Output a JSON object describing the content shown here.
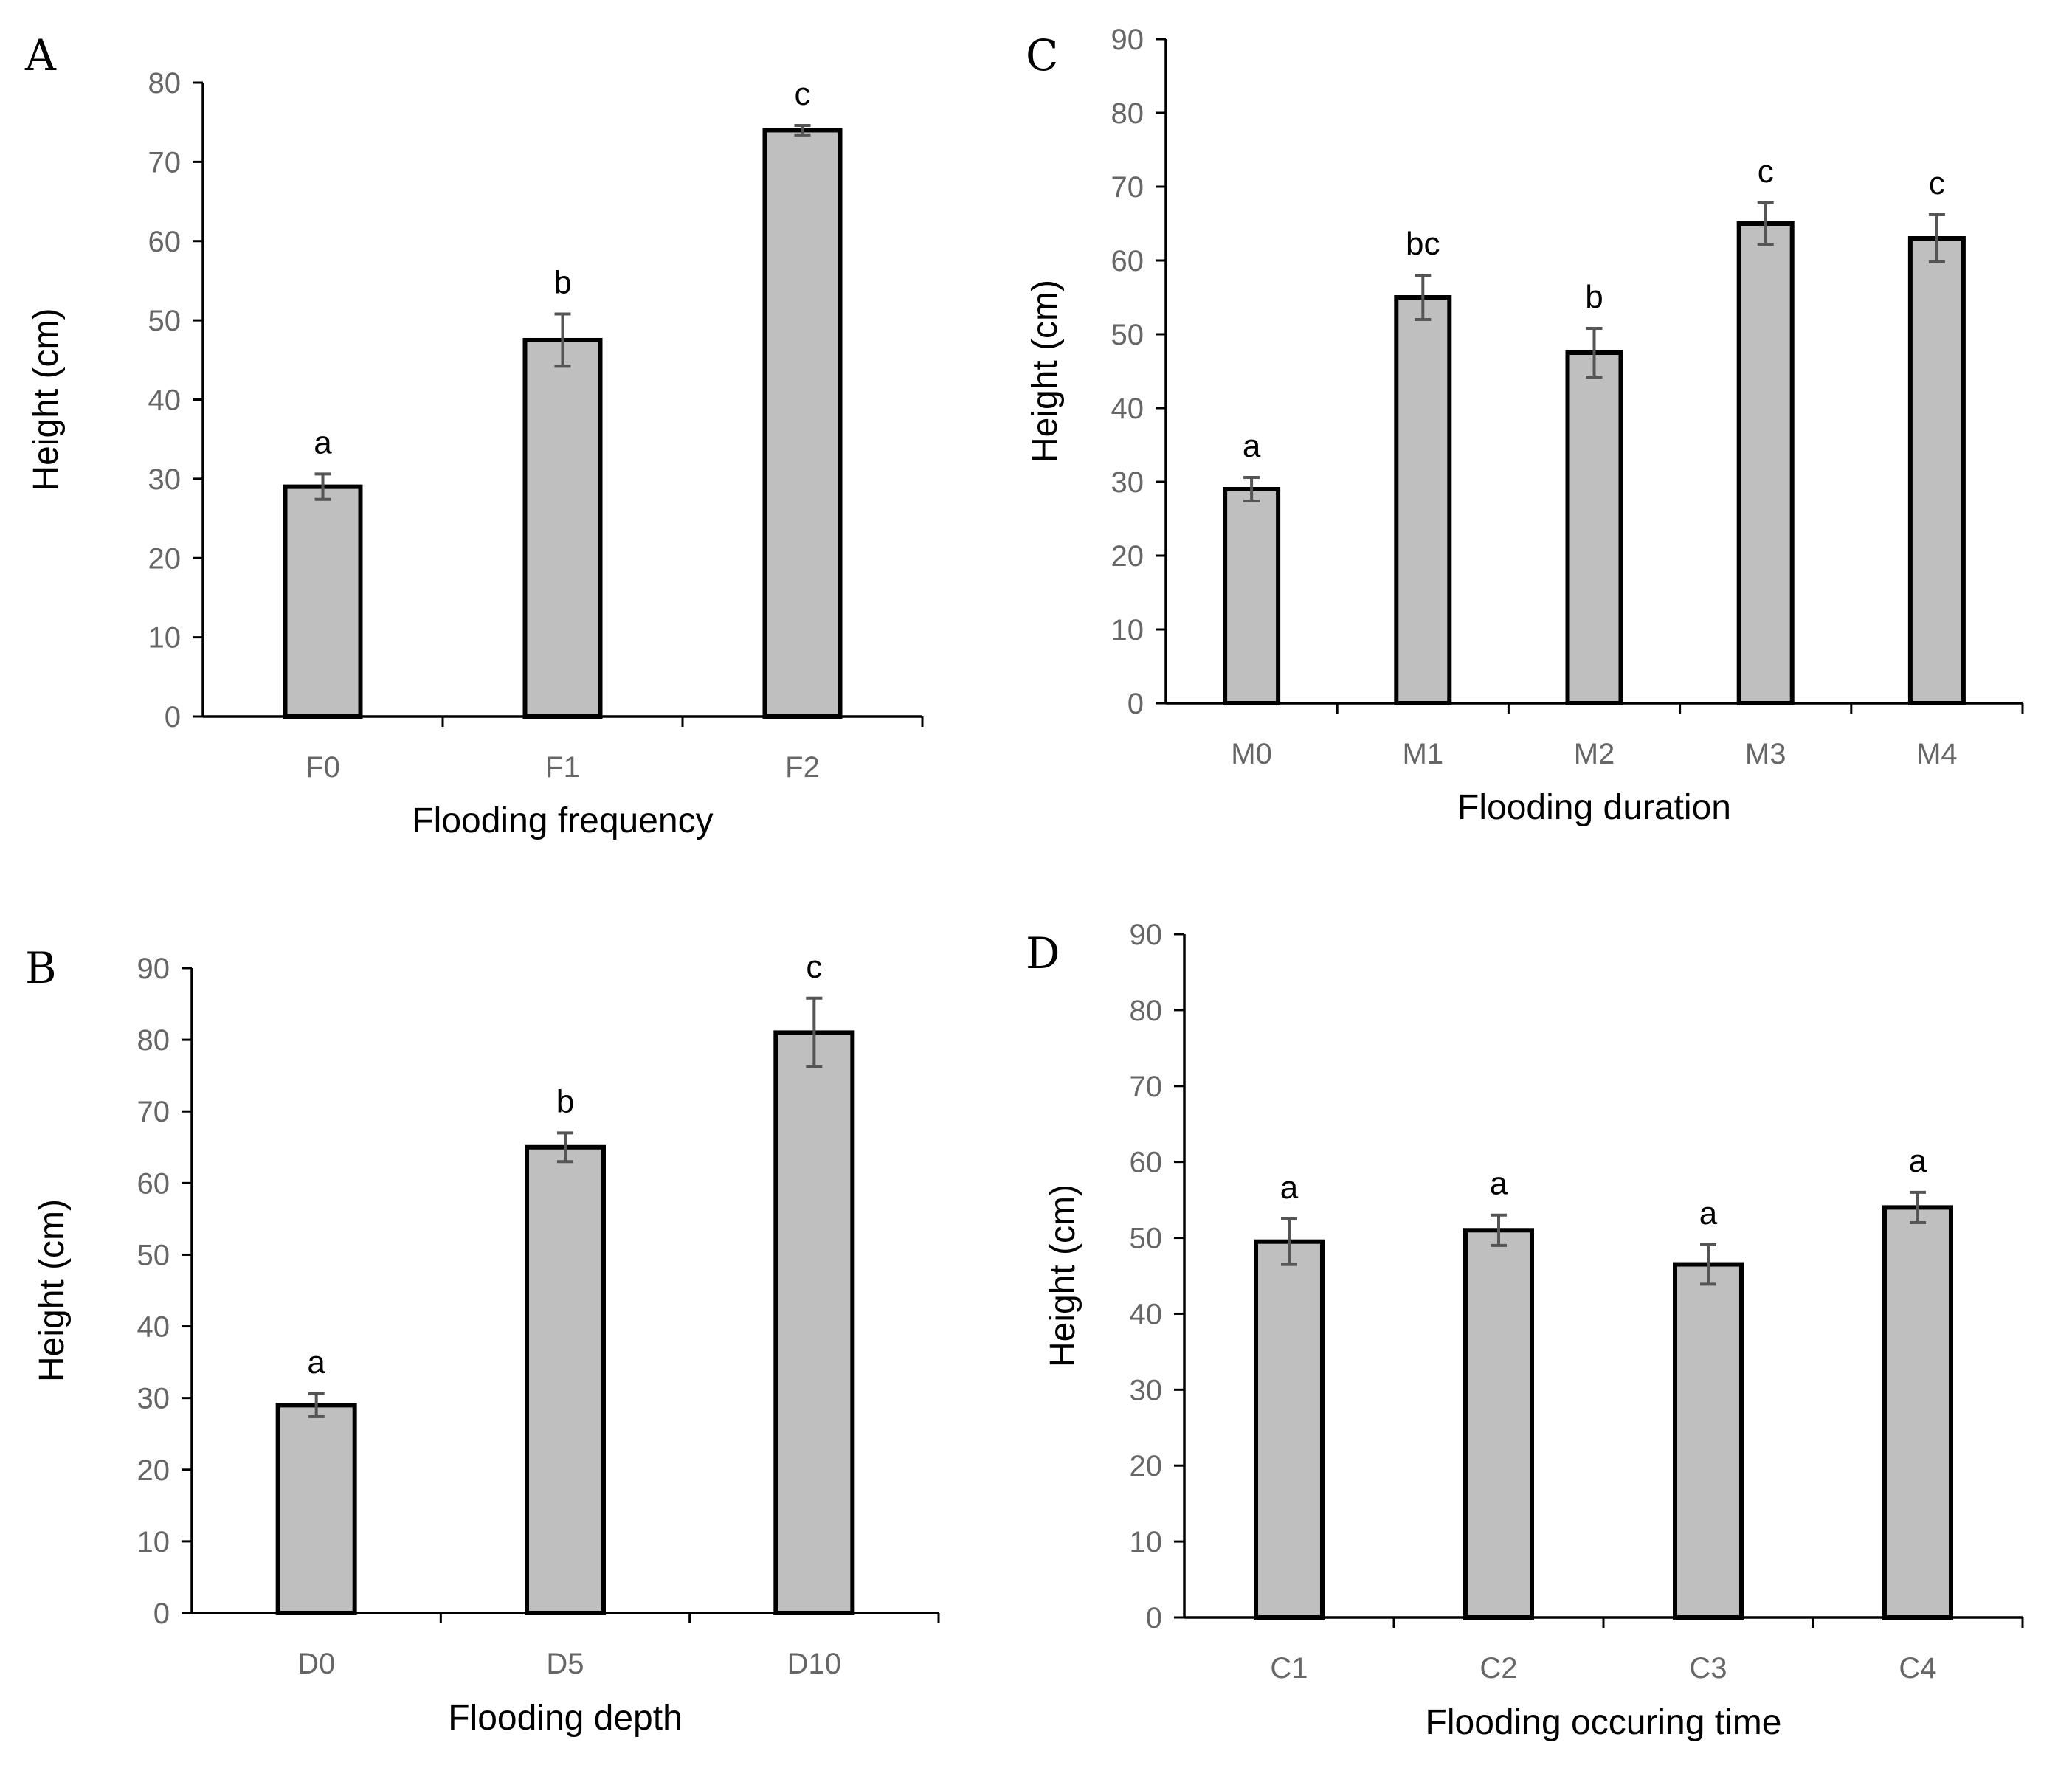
{
  "chart_data": [
    {
      "type": "bar",
      "panel": "A",
      "xlabel": "Flooding frequency",
      "ylabel": "Height (cm)",
      "ylim": [
        0,
        80
      ],
      "ytick_step": 10,
      "categories": [
        "F0",
        "F1",
        "F2"
      ],
      "values": [
        29,
        47.5,
        74
      ],
      "errors": [
        1.6,
        3.3,
        0.6
      ],
      "letters": [
        "a",
        "b",
        "c"
      ]
    },
    {
      "type": "bar",
      "panel": "B",
      "xlabel": "Flooding depth",
      "ylabel": "Height (cm)",
      "ylim": [
        0,
        90
      ],
      "ytick_step": 10,
      "categories": [
        "D0",
        "D5",
        "D10"
      ],
      "values": [
        29,
        65,
        81
      ],
      "errors": [
        1.6,
        2.0,
        4.8
      ],
      "letters": [
        "a",
        "b",
        "c"
      ]
    },
    {
      "type": "bar",
      "panel": "C",
      "xlabel": "Flooding duration",
      "ylabel": "Height (cm)",
      "ylim": [
        0,
        90
      ],
      "ytick_step": 10,
      "categories": [
        "M0",
        "M1",
        "M2",
        "M3",
        "M4"
      ],
      "values": [
        29,
        55,
        47.5,
        65,
        63
      ],
      "errors": [
        1.6,
        3.0,
        3.3,
        2.8,
        3.2
      ],
      "letters": [
        "a",
        "bc",
        "b",
        "c",
        "c"
      ]
    },
    {
      "type": "bar",
      "panel": "D",
      "xlabel": "Flooding occuring time",
      "ylabel": "Height (cm)",
      "ylim": [
        0,
        90
      ],
      "ytick_step": 10,
      "categories": [
        "C1",
        "C2",
        "C3",
        "C4"
      ],
      "values": [
        49.5,
        51,
        46.5,
        54
      ],
      "errors": [
        3.0,
        2.0,
        2.6,
        2.0
      ],
      "letters": [
        "a",
        "a",
        "a",
        "a"
      ]
    }
  ]
}
